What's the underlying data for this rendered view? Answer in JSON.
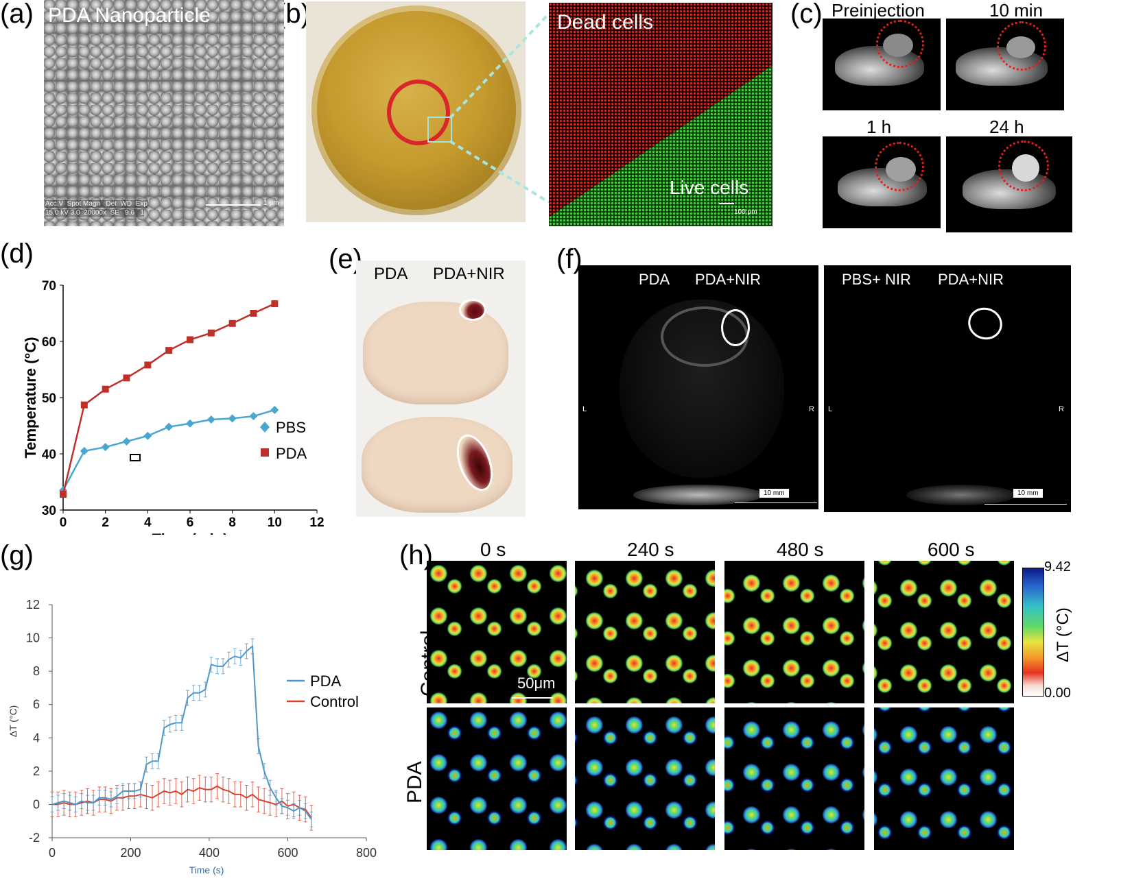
{
  "panels": {
    "a": {
      "letter": "(a)",
      "title": "PDA Nanoparticle",
      "meta_line1": "Acc.V  Spot Magn   Det  WD  Exp",
      "meta_line2": "15.0 kV 3.0  20000x  SE   9.6   1",
      "scale": "1 μm"
    },
    "b": {
      "letter": "(b)",
      "dead": "Dead cells",
      "live": "Live cells",
      "scale": "100 μm"
    },
    "c": {
      "letter": "(c)",
      "labels": [
        "Preinjection",
        "10 min",
        "1 h",
        "24 h"
      ]
    },
    "d": {
      "letter": "(d)"
    },
    "e": {
      "letter": "(e)",
      "labels": [
        "PDA",
        "PDA+NIR"
      ]
    },
    "f": {
      "letter": "(f)",
      "left_labels": [
        "PDA",
        "PDA+NIR"
      ],
      "right_labels": [
        "PBS+ NIR",
        "PDA+NIR"
      ],
      "side_l": "L",
      "side_r": "R",
      "scale": "10 mm"
    },
    "g": {
      "letter": "(g)"
    },
    "h": {
      "letter": "(h)",
      "times": [
        "0 s",
        "240 s",
        "480 s",
        "600 s"
      ],
      "rows": [
        "Control",
        "PDA"
      ],
      "scale": "50μm",
      "cbar_max": "9.42",
      "cbar_min": "0.00",
      "cbar_label": "ΔT (°C)"
    }
  },
  "chart_data": [
    {
      "id": "d",
      "type": "line",
      "xlabel": "Time (min)",
      "ylabel": "Temperature (°C)",
      "xlim": [
        0,
        12
      ],
      "ylim": [
        30,
        70
      ],
      "xticks": [
        "0",
        "2",
        "4",
        "6",
        "8",
        "10",
        "12"
      ],
      "yticks": [
        "30",
        "40",
        "50",
        "60",
        "70"
      ],
      "legend": "right",
      "series": [
        {
          "name": "PBS",
          "color": "#4aa6cf",
          "marker": "diamond",
          "x": [
            0,
            1,
            2,
            3,
            4,
            5,
            6,
            7,
            8,
            9,
            10
          ],
          "values": [
            33.5,
            40.5,
            41.2,
            42.2,
            43.2,
            44.8,
            45.4,
            46.1,
            46.3,
            46.7,
            47.8
          ]
        },
        {
          "name": "PDA",
          "color": "#c0302b",
          "marker": "square",
          "x": [
            0,
            1,
            2,
            3,
            4,
            5,
            6,
            7,
            8,
            9,
            10
          ],
          "values": [
            32.8,
            48.7,
            51.5,
            53.5,
            55.8,
            58.4,
            60.3,
            61.5,
            63.2,
            65.0,
            66.7
          ]
        }
      ]
    },
    {
      "id": "g",
      "type": "line",
      "xlabel": "Time (s)",
      "ylabel": "ΔT (°C)",
      "xlim": [
        0,
        800
      ],
      "ylim": [
        -2,
        12
      ],
      "xticks": [
        "0",
        "200",
        "400",
        "600",
        "800"
      ],
      "yticks": [
        "-2",
        "0",
        "2",
        "4",
        "6",
        "8",
        "10",
        "12"
      ],
      "legend": "right",
      "series": [
        {
          "name": "PDA",
          "color": "#4f97c9",
          "x": [
            0,
            15,
            30,
            45,
            60,
            75,
            90,
            105,
            120,
            135,
            150,
            165,
            180,
            195,
            210,
            225,
            240,
            255,
            270,
            285,
            300,
            315,
            330,
            345,
            360,
            375,
            390,
            405,
            420,
            435,
            450,
            465,
            480,
            495,
            510,
            525,
            540,
            555,
            570,
            585,
            600,
            615,
            630,
            645,
            660
          ],
          "values": [
            0,
            0.1,
            0.2,
            0.1,
            0,
            0.2,
            0.1,
            0.1,
            0.4,
            0.4,
            0.3,
            0.5,
            0.8,
            0.8,
            0.8,
            0.9,
            2.4,
            2.6,
            2.6,
            4.6,
            4.8,
            4.9,
            4.9,
            6.4,
            6.7,
            6.7,
            6.9,
            8.4,
            8.3,
            8.3,
            8.7,
            8.9,
            8.8,
            9.2,
            9.5,
            3.5,
            2.0,
            1.0,
            0.4,
            -0.1,
            -0.2,
            -0.4,
            -0.2,
            -0.4,
            -0.9
          ],
          "error": 0.45
        },
        {
          "name": "Control",
          "color": "#d9412e",
          "x": [
            0,
            15,
            30,
            45,
            60,
            75,
            90,
            105,
            120,
            135,
            150,
            165,
            180,
            195,
            210,
            225,
            240,
            255,
            270,
            285,
            300,
            315,
            330,
            345,
            360,
            375,
            390,
            405,
            420,
            435,
            450,
            465,
            480,
            495,
            510,
            525,
            540,
            555,
            570,
            585,
            600,
            615,
            630,
            645,
            660
          ],
          "values": [
            0,
            0,
            0.1,
            0,
            0,
            0.1,
            0.2,
            0.1,
            0.3,
            0.3,
            0.2,
            0.4,
            0.4,
            0.5,
            0.5,
            0.6,
            0.5,
            0.4,
            0.6,
            0.8,
            0.7,
            0.8,
            0.6,
            0.9,
            0.8,
            1.0,
            0.9,
            0.9,
            1.1,
            0.9,
            0.8,
            0.6,
            0.6,
            0.4,
            0.6,
            0.3,
            0.2,
            0.1,
            0,
            0.2,
            -0.1,
            0,
            -0.2,
            -0.3,
            -0.8
          ],
          "error": 0.75
        }
      ]
    }
  ],
  "colors": {
    "dead": "#e0231d",
    "live": "#3fd13a",
    "micro_bg": "#000000"
  }
}
